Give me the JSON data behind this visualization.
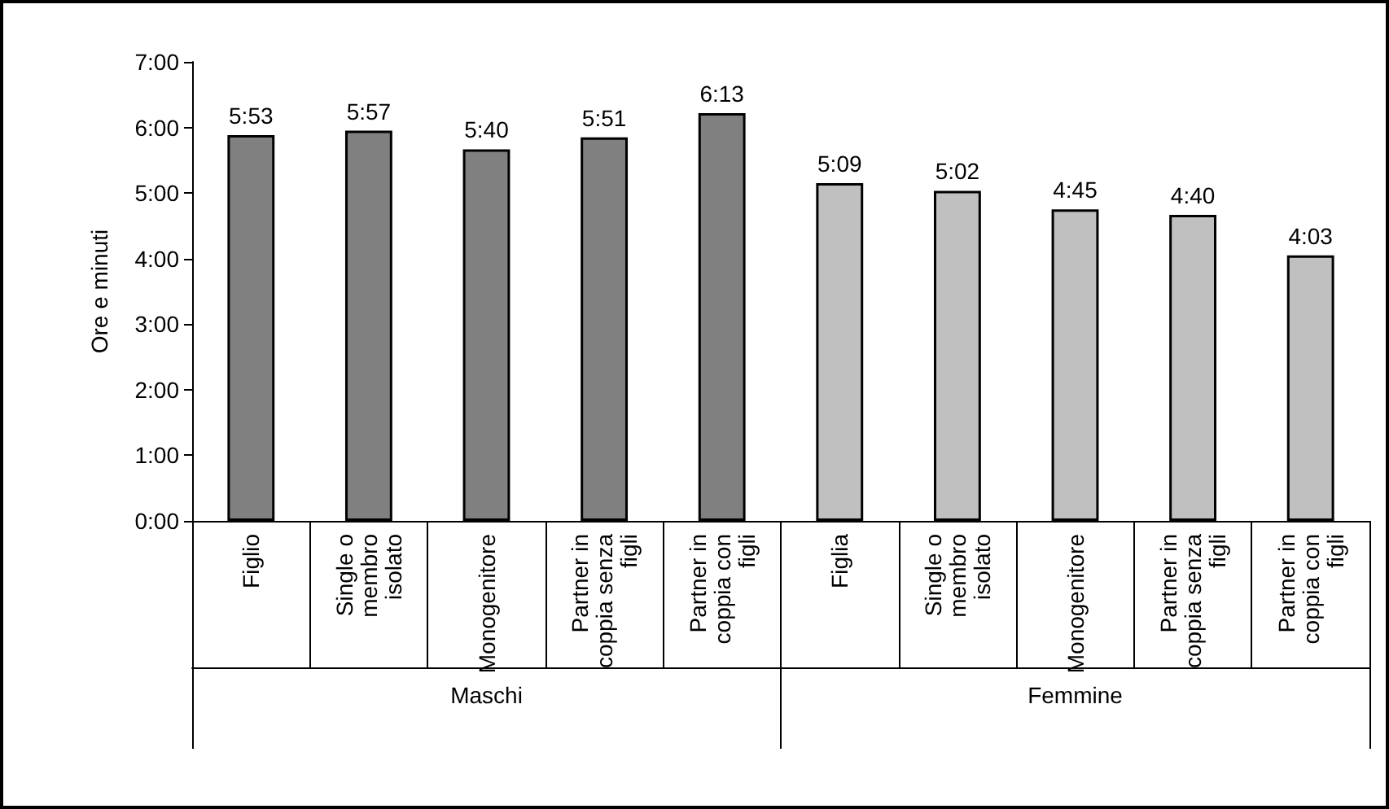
{
  "chart_data": {
    "type": "bar",
    "ylabel": "Ore e minuti",
    "categories": [
      "Figlio",
      "Single o membro isolato",
      "Monogenitore",
      "Partner in coppia senza figli",
      "Partner in coppia con figli",
      "Figlia",
      "Single o membro isolato",
      "Monogenitore",
      "Partner in coppia senza figli",
      "Partner in coppia con figli"
    ],
    "values": [
      5.883,
      5.95,
      5.667,
      5.85,
      6.217,
      5.15,
      5.033,
      4.75,
      4.667,
      4.05
    ],
    "value_labels": [
      "5:53",
      "5:57",
      "5:40",
      "5:51",
      "6:13",
      "5:09",
      "5:02",
      "4:45",
      "4:40",
      "4:03"
    ],
    "colors": [
      "#808080",
      "#808080",
      "#808080",
      "#808080",
      "#808080",
      "#c0c0c0",
      "#c0c0c0",
      "#c0c0c0",
      "#c0c0c0",
      "#c0c0c0"
    ],
    "annotations": [
      "Maschi",
      "Femmine"
    ],
    "ylim": [
      0,
      7
    ],
    "yticks": [
      {
        "value": 0,
        "label": "0:00"
      },
      {
        "value": 1,
        "label": "1:00"
      },
      {
        "value": 2,
        "label": "2:00"
      },
      {
        "value": 3,
        "label": "3:00"
      },
      {
        "value": 4,
        "label": "4:00"
      },
      {
        "value": 5,
        "label": "5:00"
      },
      {
        "value": 6,
        "label": "6:00"
      },
      {
        "value": 7,
        "label": "7:00"
      }
    ],
    "grid": false
  }
}
